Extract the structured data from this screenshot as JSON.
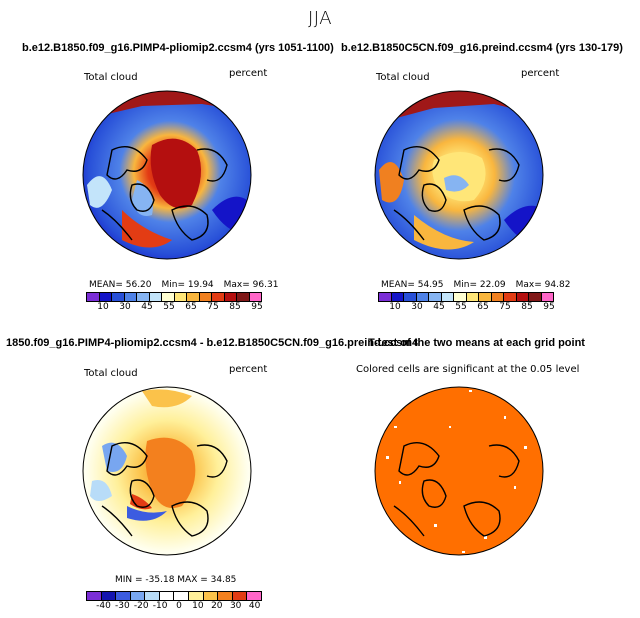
{
  "page_title": "JJA",
  "panels": [
    {
      "title": "b.e12.B1850.f09_g16.PIMP4-pliomip2.ccsm4 (yrs 1051-1100)",
      "left_label": "Total cloud",
      "right_label": "percent",
      "stats": {
        "mean": "MEAN=   56.20",
        "min": "Min=   19.94",
        "max": "Max=   96.31"
      },
      "colorbar_ticks": [
        "10",
        "30",
        "45",
        "55",
        "65",
        "75",
        "85",
        "95"
      ]
    },
    {
      "title": "b.e12.B1850C5CN.f09_g16.preind.ccsm4 (yrs 130-179)",
      "left_label": "Total cloud",
      "right_label": "percent",
      "stats": {
        "mean": "MEAN=   54.95",
        "min": "Min=   22.09",
        "max": "Max=   94.82"
      },
      "colorbar_ticks": [
        "10",
        "30",
        "45",
        "55",
        "65",
        "75",
        "85",
        "95"
      ]
    },
    {
      "title": "1850.f09_g16.PIMP4-pliomip2.ccsm4 - b.e12.B1850C5CN.f09_g16.preind.ccsm4",
      "left_label": "Total cloud",
      "right_label": "percent",
      "stats_line": "MIN = -35.18   MAX =   34.85",
      "colorbar_ticks": [
        "-40",
        "-30",
        "-20",
        "-10",
        "0",
        "10",
        "20",
        "30",
        "40"
      ]
    },
    {
      "title": "T-test of the two means at each grid point",
      "subtitle": "Colored cells are significant at the 0.05 level"
    }
  ],
  "colors": {
    "abs_scale": [
      "#7b2ed6",
      "#1414c8",
      "#2850d8",
      "#4f82e8",
      "#86b4f2",
      "#c3e4fa",
      "#ffffd2",
      "#ffe678",
      "#f9b63e",
      "#f08020",
      "#e33c14",
      "#b40f0f",
      "#801818",
      "#ff66c8"
    ],
    "diff_scale": [
      "#7b2ed6",
      "#1414b0",
      "#3c5ce0",
      "#78a6f0",
      "#b8dcf8",
      "#ffffff",
      "#ffffff",
      "#fff09a",
      "#fbc24a",
      "#f3801e",
      "#e33c14",
      "#ff66c8"
    ],
    "significance": "#ff6f00"
  }
}
